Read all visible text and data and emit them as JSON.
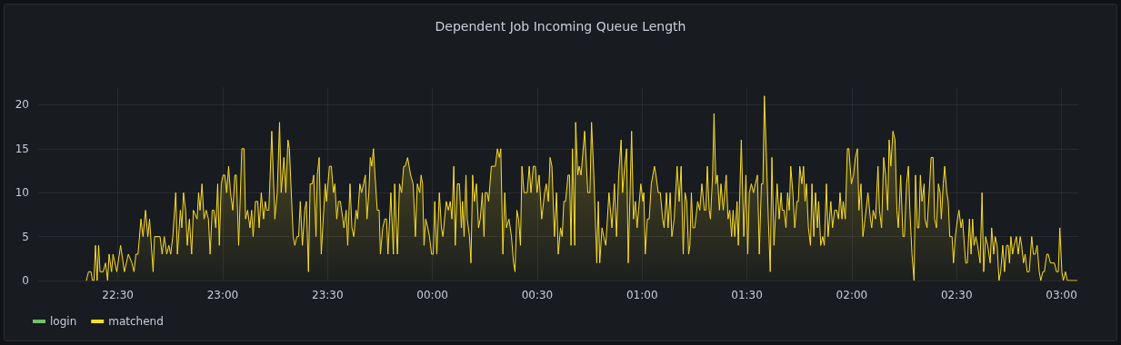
{
  "chart_data": {
    "type": "area",
    "title": "Dependent Job Incoming Queue Length",
    "xlim": [
      "2000-01-01T22:07:12",
      "2000-01-02T03:04:48"
    ],
    "xticks": [
      {
        "value": "2000-01-01T22:30",
        "label": "22:30"
      },
      {
        "value": "2000-01-01T23:00",
        "label": "23:00"
      },
      {
        "value": "2000-01-01T23:30",
        "label": "23:30"
      },
      {
        "value": "2000-01-02T00:00",
        "label": "00:00"
      },
      {
        "value": "2000-01-02T00:30",
        "label": "00:30"
      },
      {
        "value": "2000-01-02T01:00",
        "label": "01:00"
      },
      {
        "value": "2000-01-02T01:30",
        "label": "01:30"
      },
      {
        "value": "2000-01-02T02:00",
        "label": "02:00"
      },
      {
        "value": "2000-01-02T02:30",
        "label": "02:30"
      },
      {
        "value": "2000-01-02T03:00",
        "label": "03:00"
      }
    ],
    "ylim": [
      0,
      22
    ],
    "yticks": [
      0,
      5,
      10,
      15,
      20
    ],
    "grid": true,
    "legend": "bottom left",
    "marker": "none",
    "line_style": "solid",
    "series": [
      {
        "name": "login",
        "color": "#73bf69"
      },
      {
        "name": "matchend",
        "color": "#fade2a",
        "x": [
          "2000-01-01T22:21:00",
          "2000-01-01T22:21:36",
          "2000-01-01T22:22:19",
          "2000-01-01T22:22:44",
          "2000-01-01T22:23:10",
          "2000-01-01T22:23:35",
          "2000-01-01T22:24:04",
          "2000-01-01T22:24:29",
          "2000-01-01T22:24:54",
          "2000-01-01T22:25:48",
          "2000-01-01T22:26:28",
          "2000-01-01T22:27:04",
          "2000-01-01T22:27:29",
          "2000-01-01T22:28:12",
          "2000-01-01T22:28:37",
          "2000-01-01T22:29:42",
          "2000-01-01T22:30:47",
          "2000-01-01T22:31:52",
          "2000-01-01T22:33:00",
          "2000-01-01T22:34:01",
          "2000-01-01T22:34:37",
          "2000-01-01T22:35:10",
          "2000-01-01T22:35:46",
          "2000-01-01T22:36:36",
          "2000-01-01T22:37:12",
          "2000-01-01T22:37:55",
          "2000-01-01T22:38:35",
          "2000-01-01T22:39:04",
          "2000-01-01T22:40:05",
          "2000-01-01T22:40:30",
          "2000-01-01T22:42:04",
          "2000-01-01T22:42:40",
          "2000-01-01T22:43:16",
          "2000-01-01T22:43:59",
          "2000-01-01T22:44:35",
          "2000-01-01T22:45:07",
          "2000-01-01T22:45:43",
          "2000-01-01T22:46:34",
          "2000-01-01T22:47:02",
          "2000-01-01T22:47:53",
          "2000-01-01T22:48:18",
          "2000-01-01T22:48:47",
          "2000-01-01T22:49:23",
          "2000-01-01T22:49:52",
          "2000-01-01T22:50:28",
          "2000-01-01T22:51:07",
          "2000-01-01T22:51:36",
          "2000-01-01T22:52:41",
          "2000-01-01T22:53:06",
          "2000-01-01T22:53:31",
          "2000-01-01T22:54:04",
          "2000-01-01T22:54:40",
          "2000-01-01T22:55:16",
          "2000-01-01T22:55:55",
          "2000-01-01T22:56:24",
          "2000-01-01T22:57:00",
          "2000-01-01T22:57:29",
          "2000-01-01T22:58:01",
          "2000-01-01T22:58:34",
          "2000-01-01T22:59:02",
          "2000-01-01T22:59:35",
          "2000-01-01T23:00:07",
          "2000-01-01T23:00:36",
          "2000-01-01T23:01:08",
          "2000-01-01T23:01:41",
          "2000-01-01T23:02:13",
          "2000-01-01T23:02:53",
          "2000-01-01T23:03:29",
          "2000-01-01T23:03:54",
          "2000-01-01T23:04:34",
          "2000-01-01T23:05:28",
          "2000-01-01T23:06:07",
          "2000-01-01T23:06:32",
          "2000-01-01T23:07:08",
          "2000-01-01T23:07:48",
          "2000-01-01T23:08:17",
          "2000-01-01T23:08:42",
          "2000-01-01T23:09:22",
          "2000-01-01T23:10:01",
          "2000-01-01T23:10:26",
          "2000-01-01T23:11:02",
          "2000-01-01T23:11:42",
          "2000-01-01T23:12:11",
          "2000-01-01T23:12:36",
          "2000-01-01T23:13:12",
          "2000-01-01T23:14:02",
          "2000-01-01T23:14:56",
          "2000-01-01T23:15:36",
          "2000-01-01T23:16:16",
          "2000-01-01T23:16:44",
          "2000-01-01T23:17:31",
          "2000-01-01T23:18:04",
          "2000-01-01T23:18:40",
          "2000-01-01T23:19:05",
          "2000-01-01T23:20:10",
          "2000-01-01T23:20:38",
          "2000-01-01T23:21:14",
          "2000-01-01T23:21:43",
          "2000-01-01T23:22:12",
          "2000-01-01T23:22:48",
          "2000-01-01T23:23:28",
          "2000-01-01T23:23:56",
          "2000-01-01T23:24:32",
          "2000-01-01T23:25:01",
          "2000-01-01T23:25:37",
          "2000-01-01T23:26:02",
          "2000-01-01T23:26:42",
          "2000-01-01T23:27:04",
          "2000-01-01T23:27:36",
          "2000-01-01T23:28:12",
          "2000-01-01T23:29:20",
          "2000-01-01T23:29:42",
          "2000-01-01T23:30:32",
          "2000-01-01T23:31:05",
          "2000-01-01T23:31:41",
          "2000-01-01T23:32:06",
          "2000-01-01T23:32:38",
          "2000-01-01T23:33:07",
          "2000-01-01T23:33:40",
          "2000-01-01T23:34:23",
          "2000-01-01T23:34:41",
          "2000-01-01T23:35:20",
          "2000-01-01T23:35:46",
          "2000-01-01T23:36:25",
          "2000-01-01T23:36:58",
          "2000-01-01T23:37:30",
          "2000-01-01T23:38:10",
          "2000-01-01T23:38:35",
          "2000-01-01T23:39:14",
          "2000-01-01T23:39:43",
          "2000-01-01T23:40:19",
          "2000-01-01T23:40:48",
          "2000-01-01T23:41:17",
          "2000-01-01T23:41:49",
          "2000-01-01T23:42:14",
          "2000-01-01T23:42:40",
          "2000-01-01T23:43:08",
          "2000-01-01T23:43:34",
          "2000-01-01T23:44:13",
          "2000-01-01T23:44:46",
          "2000-01-01T23:45:07",
          "2000-01-01T23:45:47",
          "2000-01-01T23:46:23",
          "2000-01-01T23:46:52",
          "2000-01-01T23:47:17",
          "2000-01-01T23:48:07",
          "2000-01-01T23:48:50",
          "2000-01-01T23:49:12",
          "2000-01-01T23:49:59",
          "2000-01-01T23:50:35",
          "2000-01-01T23:51:11",
          "2000-01-01T23:51:47",
          "2000-01-01T23:52:12",
          "2000-01-01T23:52:55",
          "2000-01-01T23:53:20",
          "2000-01-01T23:53:46",
          "2000-01-01T23:54:29",
          "2000-01-01T23:55:08",
          "2000-01-01T23:55:41",
          "2000-01-01T23:56:24",
          "2000-01-01T23:56:46",
          "2000-01-01T23:57:11",
          "2000-01-01T23:57:36",
          "2000-01-01T23:58:05",
          "2000-01-01T23:58:41",
          "2000-01-01T23:59:10",
          "2000-01-01T23:59:46",
          "2000-01-02T00:00:14",
          "2000-01-02T00:00:40",
          "2000-01-02T00:01:16",
          "2000-01-02T00:01:59",
          "2000-01-02T00:02:35",
          "2000-01-02T00:03:00",
          "2000-01-02T00:03:58",
          "2000-01-02T00:04:34",
          "2000-01-02T00:05:06",
          "2000-01-02T00:05:35",
          "2000-01-02T00:06:07",
          "2000-01-02T00:06:32",
          "2000-01-02T00:07:08",
          "2000-01-02T00:07:44",
          "2000-01-02T00:08:17",
          "2000-01-02T00:08:38",
          "2000-01-02T00:09:04",
          "2000-01-02T00:09:36",
          "2000-01-02T00:09:58",
          "2000-01-02T00:10:37",
          "2000-01-02T00:11:02",
          "2000-01-02T00:11:31",
          "2000-01-02T00:12:00",
          "2000-01-02T00:12:36",
          "2000-01-02T00:13:12",
          "2000-01-02T00:13:41",
          "2000-01-02T00:14:17",
          "2000-01-02T00:14:46",
          "2000-01-02T00:15:07",
          "2000-01-02T00:15:40",
          "2000-01-02T00:16:05",
          "2000-01-02T00:16:52",
          "2000-01-02T00:18:00",
          "2000-01-02T00:18:36",
          "2000-01-02T00:19:08",
          "2000-01-02T00:19:34",
          "2000-01-02T00:20:10",
          "2000-01-02T00:20:42",
          "2000-01-02T00:21:11",
          "2000-01-02T00:21:54",
          "2000-01-02T00:22:37",
          "2000-01-02T00:23:13",
          "2000-01-02T00:23:38",
          "2000-01-02T00:24:11",
          "2000-01-02T00:24:40",
          "2000-01-02T00:25:12",
          "2000-01-02T00:25:37",
          "2000-01-02T00:26:13",
          "2000-01-02T00:27:07",
          "2000-01-02T00:27:43",
          "2000-01-02T00:28:12",
          "2000-01-02T00:28:52",
          "2000-01-02T00:29:28",
          "2000-01-02T00:29:56",
          "2000-01-02T00:30:32",
          "2000-01-02T00:31:16",
          "2000-01-02T00:32:06",
          "2000-01-02T00:32:35",
          "2000-01-02T00:33:11",
          "2000-01-02T00:33:40",
          "2000-01-02T00:34:12",
          "2000-01-02T00:34:55",
          "2000-01-02T00:35:31",
          "2000-01-02T00:36:00",
          "2000-01-02T00:36:40",
          "2000-01-02T00:37:08",
          "2000-01-02T00:37:37",
          "2000-01-02T00:38:06",
          "2000-01-02T00:38:49",
          "2000-01-02T00:39:14",
          "2000-01-02T00:39:40",
          "2000-01-02T00:40:05",
          "2000-01-02T00:40:44",
          "2000-01-02T00:40:59",
          "2000-01-02T00:41:35",
          "2000-01-02T00:42:00",
          "2000-01-02T00:42:32",
          "2000-01-02T00:43:34",
          "2000-01-02T00:44:28",
          "2000-01-02T00:45:04",
          "2000-01-02T00:45:32",
          "2000-01-02T00:46:12",
          "2000-01-02T00:47:02",
          "2000-01-02T00:47:28",
          "2000-01-02T00:47:53",
          "2000-01-02T00:48:32",
          "2000-01-02T00:49:01",
          "2000-01-02T00:49:37",
          "2000-01-02T00:50:31",
          "2000-01-02T00:51:22",
          "2000-01-02T00:52:05",
          "2000-01-02T00:52:41",
          "2000-01-02T00:53:17",
          "2000-01-02T00:54:00",
          "2000-01-02T00:54:25",
          "2000-01-02T00:55:01",
          "2000-01-02T00:55:34",
          "2000-01-02T00:56:02",
          "2000-01-02T00:57:00",
          "2000-01-02T00:57:32",
          "2000-01-02T00:58:05",
          "2000-01-02T00:58:34",
          "2000-01-02T00:58:59",
          "2000-01-02T00:59:38",
          "2000-01-02T01:00:14",
          "2000-01-02T01:00:29",
          "2000-01-02T01:00:54",
          "2000-01-02T01:01:30",
          "2000-01-02T01:02:02",
          "2000-01-02T01:02:38",
          "2000-01-02T01:03:32",
          "2000-01-02T01:03:58",
          "2000-01-02T01:04:37",
          "2000-01-02T01:05:13",
          "2000-01-02T01:05:53",
          "2000-01-02T01:06:18",
          "2000-01-02T01:06:58",
          "2000-01-02T01:07:26",
          "2000-01-02T01:08:02",
          "2000-01-02T01:08:31",
          "2000-01-02T01:09:11",
          "2000-01-02T01:10:01",
          "2000-01-02T01:10:37",
          "2000-01-02T01:11:10",
          "2000-01-02T01:11:46",
          "2000-01-02T01:12:18",
          "2000-01-02T01:12:47",
          "2000-01-02T01:13:19",
          "2000-01-02T01:13:41",
          "2000-01-02T01:14:06",
          "2000-01-02T01:14:31",
          "2000-01-02T01:15:04",
          "2000-01-02T01:15:54",
          "2000-01-02T01:16:30",
          "2000-01-02T01:17:06",
          "2000-01-02T01:17:49",
          "2000-01-02T01:18:14",
          "2000-01-02T01:18:40",
          "2000-01-02T01:19:12",
          "2000-01-02T01:19:34",
          "2000-01-02T01:20:10",
          "2000-01-02T01:20:35",
          "2000-01-02T01:21:07",
          "2000-01-02T01:21:32",
          "2000-01-02T01:22:08",
          "2000-01-02T01:22:34",
          "2000-01-02T01:23:13",
          "2000-01-02T01:24:04",
          "2000-01-02T01:24:36",
          "2000-01-02T01:25:05",
          "2000-01-02T01:25:37",
          "2000-01-02T01:26:02",
          "2000-01-02T01:26:31",
          "2000-01-02T01:27:11",
          "2000-01-02T01:27:32",
          "2000-01-02T01:28:23",
          "2000-01-02T01:29:06",
          "2000-01-02T01:29:42",
          "2000-01-02T01:30:14",
          "2000-01-02T01:30:40",
          "2000-01-02T01:31:16",
          "2000-01-02T01:31:52",
          "2000-01-02T01:32:24",
          "2000-01-02T01:33:00",
          "2000-01-02T01:33:32",
          "2000-01-02T01:34:08",
          "2000-01-02T01:34:34",
          "2000-01-02T01:34:59",
          "2000-01-02T01:35:35",
          "2000-01-02T01:36:07",
          "2000-01-02T01:36:40",
          "2000-01-02T01:37:08",
          "2000-01-02T01:37:44",
          "2000-01-02T01:38:38",
          "2000-01-02T01:39:14",
          "2000-01-02T01:39:47",
          "2000-01-02T01:40:05",
          "2000-01-02T01:40:37",
          "2000-01-02T01:41:10",
          "2000-01-02T01:41:38",
          "2000-01-02T01:42:07",
          "2000-01-02T01:42:32",
          "2000-01-02T01:43:08",
          "2000-01-02T01:43:41",
          "2000-01-02T01:44:17",
          "2000-01-02T01:44:42",
          "2000-01-02T01:45:07",
          "2000-01-02T01:45:43",
          "2000-01-02T01:46:12",
          "2000-01-02T01:46:37",
          "2000-01-02T01:47:02",
          "2000-01-02T01:47:35",
          "2000-01-02T01:48:11",
          "2000-01-02T01:48:36",
          "2000-01-02T01:49:08",
          "2000-01-02T01:49:37",
          "2000-01-02T01:50:10",
          "2000-01-02T01:50:31",
          "2000-01-02T01:51:07",
          "2000-01-02T01:51:40",
          "2000-01-02T01:52:08",
          "2000-01-02T01:52:44",
          "2000-01-02T01:53:13",
          "2000-01-02T01:54:00",
          "2000-01-02T01:54:29",
          "2000-01-02T01:55:05",
          "2000-01-02T01:55:41",
          "2000-01-02T01:56:13",
          "2000-01-02T01:56:38",
          "2000-01-02T01:57:11",
          "2000-01-02T01:57:32",
          "2000-01-02T01:58:08",
          "2000-01-02T01:58:44",
          "2000-01-02T01:59:10",
          "2000-01-02T01:59:53",
          "2000-01-02T02:00:29",
          "2000-01-02T02:01:01",
          "2000-01-02T02:01:37",
          "2000-01-02T02:02:02",
          "2000-01-02T02:02:38",
          "2000-01-02T02:03:11",
          "2000-01-02T02:03:47",
          "2000-01-02T02:04:37",
          "2000-01-02T02:05:20",
          "2000-01-02T02:05:42",
          "2000-01-02T02:06:07",
          "2000-01-02T02:06:47",
          "2000-01-02T02:07:30",
          "2000-01-02T02:07:55",
          "2000-01-02T02:08:31",
          "2000-01-02T02:09:07",
          "2000-01-02T02:09:40",
          "2000-01-02T02:10:16",
          "2000-01-02T02:10:41",
          "2000-01-02T02:11:10",
          "2000-01-02T02:11:46",
          "2000-01-02T02:12:22",
          "2000-01-02T02:12:54",
          "2000-01-02T02:13:19",
          "2000-01-02T02:13:59",
          "2000-01-02T02:14:38",
          "2000-01-02T02:15:04",
          "2000-01-02T02:15:40",
          "2000-01-02T02:16:12",
          "2000-01-02T02:16:37",
          "2000-01-02T02:17:13",
          "2000-01-02T02:17:49",
          "2000-01-02T02:18:14",
          "2000-01-02T02:18:47",
          "2000-01-02T02:19:12",
          "2000-01-02T02:19:37",
          "2000-01-02T02:20:06",
          "2000-01-02T02:20:42",
          "2000-01-02T02:20:56",
          "2000-01-02T02:21:32",
          "2000-01-02T02:22:08",
          "2000-01-02T02:22:41",
          "2000-01-02T02:23:17",
          "2000-01-02T02:23:42",
          "2000-01-02T02:24:14",
          "2000-01-02T02:24:47",
          "2000-01-02T02:25:16",
          "2000-01-02T02:25:37",
          "2000-01-02T02:26:10",
          "2000-01-02T02:26:35",
          "2000-01-02T02:27:11",
          "2000-01-02T02:27:36",
          "2000-01-02T02:28:01",
          "2000-01-02T02:28:41",
          "2000-01-02T02:29:06",
          "2000-01-02T02:29:38",
          "2000-01-02T02:30:14",
          "2000-01-02T02:30:40",
          "2000-01-02T02:31:16",
          "2000-01-02T02:31:41",
          "2000-01-02T02:32:13",
          "2000-01-02T02:32:35",
          "2000-01-02T02:33:04",
          "2000-01-02T02:33:40",
          "2000-01-02T02:34:08",
          "2000-01-02T02:34:34",
          "2000-01-02T02:34:59",
          "2000-01-02T02:35:31",
          "2000-01-02T02:36:00",
          "2000-01-02T02:36:43",
          "2000-01-02T02:37:16",
          "2000-01-02T02:37:44",
          "2000-01-02T02:38:17",
          "2000-01-02T02:38:53",
          "2000-01-02T02:39:36",
          "2000-01-02T02:40:01",
          "2000-01-02T02:40:37",
          "2000-01-02T02:41:02",
          "2000-01-02T02:41:35",
          "2000-01-02T02:42:07",
          "2000-01-02T02:42:36",
          "2000-01-02T02:43:12",
          "2000-01-02T02:43:41",
          "2000-01-02T02:44:17",
          "2000-01-02T02:44:46",
          "2000-01-02T02:45:07",
          "2000-01-02T02:45:32",
          "2000-01-02T02:46:01",
          "2000-01-02T02:46:26",
          "2000-01-02T02:47:06",
          "2000-01-02T02:47:38",
          "2000-01-02T02:48:11",
          "2000-01-02T02:48:36",
          "2000-01-02T02:49:08",
          "2000-01-02T02:49:37",
          "2000-01-02T02:50:10",
          "2000-01-02T02:50:46",
          "2000-01-02T02:51:29",
          "2000-01-02T02:51:58",
          "2000-01-02T02:52:30",
          "2000-01-02T02:53:02",
          "2000-01-02T02:53:38",
          "2000-01-02T02:54:04",
          "2000-01-02T02:54:40",
          "2000-01-02T02:55:05",
          "2000-01-02T02:55:48",
          "2000-01-02T02:56:13",
          "2000-01-02T02:56:49",
          "2000-01-02T02:57:58",
          "2000-01-02T02:58:34",
          "2000-01-02T02:59:06",
          "2000-01-02T02:59:31",
          "2000-01-02T03:00:07",
          "2000-01-02T03:00:32",
          "2000-01-02T03:01:08",
          "2000-01-02T03:01:41",
          "2000-01-02T03:04:26"
        ],
        "values": [
          0,
          1,
          1,
          0,
          0,
          4,
          0,
          4,
          1,
          1,
          2,
          0,
          3,
          1,
          3,
          1,
          4,
          1,
          3,
          2,
          1,
          3,
          3,
          7,
          5,
          8,
          5,
          7,
          1,
          5,
          5,
          3,
          5,
          3,
          4,
          3,
          5,
          10,
          3,
          8,
          6,
          10,
          8,
          4,
          7,
          3,
          8,
          7,
          10,
          8,
          11,
          7,
          8,
          7,
          3,
          8,
          8,
          6,
          11,
          4,
          11,
          12,
          12,
          10,
          13,
          10,
          8,
          12,
          12,
          4,
          15,
          15,
          7,
          8,
          6,
          8,
          5,
          9,
          9,
          6,
          10,
          7,
          9,
          8,
          8,
          17,
          7,
          10,
          18,
          10,
          14,
          10,
          16,
          15,
          5,
          4,
          5,
          5,
          9,
          4,
          8,
          9,
          1,
          11,
          11,
          12,
          5,
          12,
          14,
          3,
          11,
          9,
          13,
          13,
          10,
          11,
          7,
          9,
          9,
          7,
          6,
          8,
          4,
          11,
          6,
          5,
          8,
          7,
          11,
          10,
          11,
          12,
          7,
          10,
          14,
          13,
          15,
          12,
          8,
          8,
          3,
          6,
          7,
          7,
          3,
          10,
          3,
          11,
          3,
          11,
          10,
          13,
          13,
          14,
          13,
          12,
          11,
          5,
          11,
          10,
          12,
          11,
          4,
          7,
          6,
          5,
          3,
          3,
          9,
          3,
          10,
          6,
          5,
          9,
          8,
          9,
          7,
          13,
          4,
          11,
          11,
          6,
          9,
          5,
          12,
          7,
          5,
          2,
          12,
          9,
          11,
          6,
          7,
          10,
          5,
          10,
          10,
          9,
          13,
          13,
          15,
          14,
          15,
          3,
          10,
          6,
          7,
          5,
          2,
          1,
          8,
          7,
          4,
          13,
          10,
          10,
          13,
          10,
          13,
          13,
          10,
          12,
          7,
          10,
          11,
          9,
          14,
          13,
          5,
          10,
          3,
          6,
          5,
          9,
          9,
          12,
          12,
          4,
          15,
          4,
          18,
          12,
          13,
          12,
          17,
          10,
          10,
          18,
          12,
          2,
          9,
          2,
          6,
          5,
          4,
          10,
          6,
          11,
          5,
          12,
          16,
          10,
          13,
          15,
          2,
          17,
          7,
          9,
          6,
          8,
          11,
          9,
          10,
          3,
          7,
          7,
          11,
          13,
          12,
          10,
          10,
          7,
          6,
          10,
          6,
          10,
          5,
          7,
          13,
          9,
          13,
          3,
          10,
          9,
          3,
          4,
          10,
          6,
          6,
          9,
          8,
          11,
          8,
          8,
          13,
          8,
          7,
          12,
          19,
          11,
          12,
          8,
          11,
          8,
          12,
          7,
          8,
          5,
          8,
          5,
          9,
          4,
          16,
          5,
          12,
          3,
          10,
          11,
          10,
          11,
          12,
          3,
          11,
          11,
          21,
          14,
          7,
          1,
          14,
          4,
          11,
          7,
          10,
          8,
          8,
          6,
          10,
          8,
          13,
          10,
          6,
          9,
          9,
          13,
          11,
          13,
          9,
          11,
          6,
          4,
          11,
          5,
          10,
          6,
          9,
          4,
          5,
          4,
          11,
          5,
          9,
          6,
          8,
          8,
          7,
          10,
          7,
          9,
          7,
          15,
          15,
          11,
          12,
          14,
          15,
          8,
          11,
          5,
          7,
          10,
          7,
          6,
          8,
          7,
          13,
          8,
          6,
          14,
          12,
          8,
          16,
          13,
          17,
          16,
          8,
          6,
          12,
          5,
          5,
          11,
          13,
          8,
          3,
          0,
          12,
          6,
          6,
          12,
          9,
          11,
          7,
          6,
          10,
          14,
          14,
          7,
          6,
          11,
          10,
          7,
          11,
          13,
          10,
          9,
          5,
          5,
          2,
          5,
          7,
          8,
          6,
          7,
          4,
          2,
          2,
          7,
          3,
          7,
          4,
          5,
          4,
          2,
          10,
          1,
          5,
          4,
          2,
          6,
          3,
          5,
          4,
          0,
          1,
          4,
          1,
          4,
          4,
          2,
          5,
          3,
          4,
          5,
          3,
          5,
          4,
          2,
          3,
          1,
          1,
          5,
          3,
          3,
          4,
          1,
          0,
          1,
          1,
          3,
          3,
          2,
          2,
          1,
          1,
          6,
          1,
          0,
          1,
          0,
          0
        ]
      }
    ]
  }
}
